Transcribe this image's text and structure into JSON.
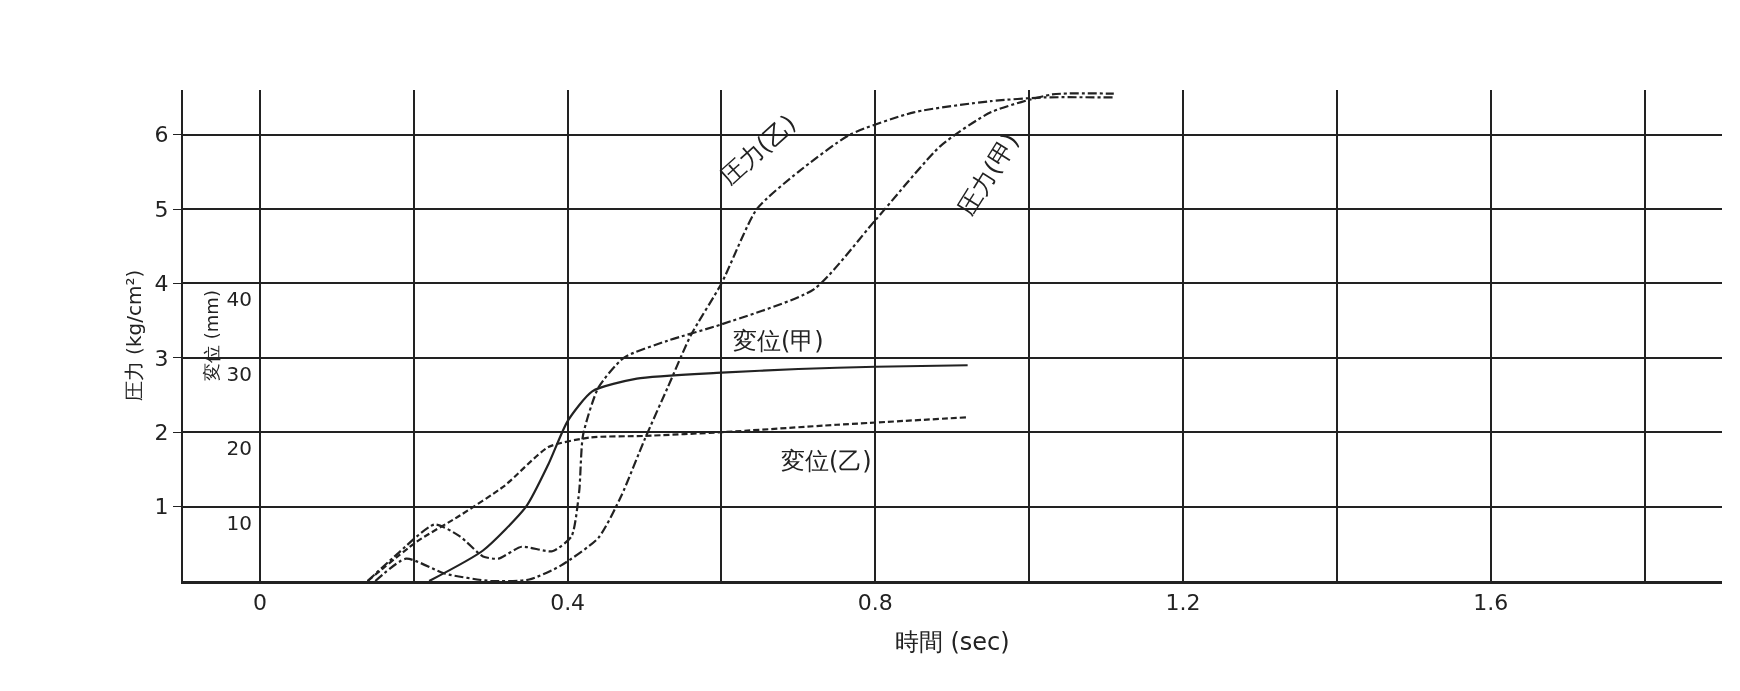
{
  "chart_data": {
    "type": "line",
    "xlabel": "時間 (sec)",
    "ylabel": "圧力 (kg/cm²)",
    "y2label": "変位 (mm)",
    "xlim": [
      -0.1,
      1.9
    ],
    "xticks": [
      0,
      {
        "value": 0.2,
        "label": null
      },
      0.4,
      {
        "value": 0.6,
        "label": null
      },
      0.8,
      {
        "value": 1.0,
        "label": null
      },
      1.2,
      {
        "value": 1.4,
        "label": null
      },
      1.6,
      {
        "value": 1.8,
        "label": null
      }
    ],
    "ylim": [
      0,
      6.6
    ],
    "yticks": [
      1,
      2,
      3,
      4,
      5,
      6
    ],
    "y2lim": [
      0,
      66
    ],
    "y2ticks": [
      10,
      20,
      30,
      40
    ],
    "grid": true,
    "legend": false,
    "marker": "none",
    "series": [
      {
        "name": "圧力(乙)",
        "color": "#222222",
        "line_style": "dotted",
        "x": [
          0.15,
          0.19,
          0.24,
          0.3,
          0.35,
          0.39,
          0.44,
          0.47,
          0.5,
          0.53,
          0.56,
          0.6,
          0.646,
          0.7,
          0.767,
          0.85,
          0.95,
          1.02,
          1.11
        ],
        "values": [
          0,
          0.3,
          0.1,
          0,
          0.02,
          0.2,
          0.58,
          1.15,
          1.9,
          2.6,
          3.3,
          4.0,
          5.0,
          5.5,
          6.0,
          6.3,
          6.45,
          6.5,
          6.5
        ]
      },
      {
        "name": "圧力(甲)",
        "color": "#222222",
        "line_style": "dotted",
        "x": [
          0.14,
          0.175,
          0.227,
          0.26,
          0.29,
          0.31,
          0.34,
          0.38,
          0.405,
          0.415,
          0.42,
          0.44,
          0.473,
          0.53,
          0.6,
          0.72,
          0.8,
          0.885,
          0.95,
          1.03,
          1.11
        ],
        "values": [
          0,
          0.33,
          0.76,
          0.6,
          0.33,
          0.3,
          0.46,
          0.4,
          0.6,
          1.2,
          1.96,
          2.6,
          3.0,
          3.23,
          3.45,
          3.92,
          4.85,
          5.85,
          6.3,
          6.54,
          6.55
        ]
      },
      {
        "name": "変位(甲)",
        "color": "#222222",
        "line_style": "solid",
        "axis": "y2",
        "x": [
          0.22,
          0.29,
          0.346,
          0.375,
          0.4,
          0.432,
          0.49,
          0.6,
          0.7,
          0.8,
          0.92
        ],
        "values": [
          0,
          4.1,
          10,
          15.7,
          21.5,
          25.5,
          27.2,
          28,
          28.5,
          28.8,
          29
        ]
      },
      {
        "name": "変位(乙)",
        "color": "#222222",
        "line_style": "dashed",
        "axis": "y2",
        "x": [
          0.14,
          0.204,
          0.26,
          0.318,
          0.375,
          0.43,
          0.5,
          0.6,
          0.75,
          0.92
        ],
        "values": [
          0,
          5.3,
          8.8,
          12.8,
          18,
          19.3,
          19.5,
          20,
          21,
          22
        ]
      }
    ]
  }
}
